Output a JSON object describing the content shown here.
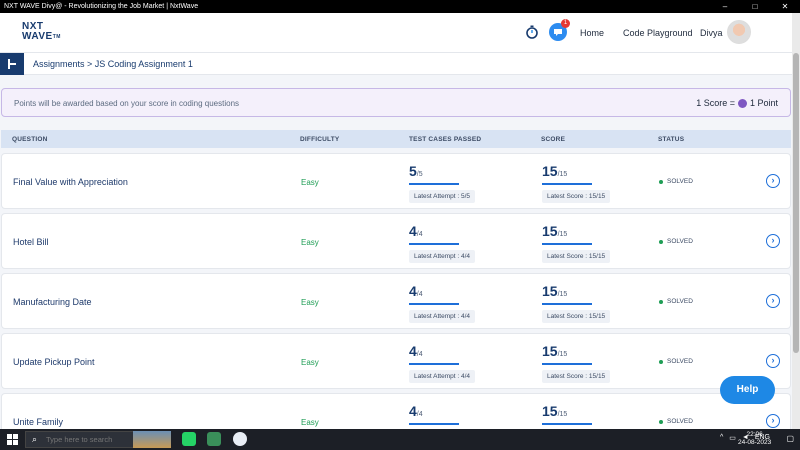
{
  "window": {
    "title": "NXT WAVE Divy@ - Revolutionizing the Job Market | NxtWave",
    "minimize": "–",
    "maximize": "□",
    "close": "✕"
  },
  "header": {
    "logo_top": "NXT",
    "logo_bottom": "WAVE",
    "logo_tm": "TM",
    "notification_count": "1",
    "nav_home": "Home",
    "nav_playground": "Code Playground",
    "user_name": "Divya"
  },
  "breadcrumb": "Assignments > JS Coding Assignment 1",
  "banner": {
    "text": "Points will be awarded based on your score in coding questions",
    "score_label": "1 Score =",
    "point_label": "1 Point"
  },
  "table": {
    "headers": [
      "QUESTION",
      "DIFFICULTY",
      "TEST CASES PASSED",
      "SCORE",
      "STATUS"
    ],
    "rows": [
      {
        "question": "Final Value with Appreciation",
        "difficulty": "Easy",
        "tests_passed": "5",
        "tests_total": "/5",
        "tests_latest": "Latest Attempt : 5/5",
        "score": "15",
        "score_total": "/15",
        "score_latest": "Latest Score : 15/15",
        "status": "SOLVED"
      },
      {
        "question": "Hotel Bill",
        "difficulty": "Easy",
        "tests_passed": "4",
        "tests_total": "/4",
        "tests_latest": "Latest Attempt : 4/4",
        "score": "15",
        "score_total": "/15",
        "score_latest": "Latest Score : 15/15",
        "status": "SOLVED"
      },
      {
        "question": "Manufacturing Date",
        "difficulty": "Easy",
        "tests_passed": "4",
        "tests_total": "/4",
        "tests_latest": "Latest Attempt : 4/4",
        "score": "15",
        "score_total": "/15",
        "score_latest": "Latest Score : 15/15",
        "status": "SOLVED"
      },
      {
        "question": "Update Pickup Point",
        "difficulty": "Easy",
        "tests_passed": "4",
        "tests_total": "/4",
        "tests_latest": "Latest Attempt : 4/4",
        "score": "15",
        "score_total": "/15",
        "score_latest": "Latest Score : 15/15",
        "status": "SOLVED"
      },
      {
        "question": "Unite Family",
        "difficulty": "Easy",
        "tests_passed": "4",
        "tests_total": "/4",
        "tests_latest": "",
        "score": "15",
        "score_total": "/15",
        "score_latest": "",
        "status": "SOLVED"
      }
    ]
  },
  "help_label": "Help",
  "taskbar": {
    "search_placeholder": "Type here to search",
    "tray_lang": "ENG",
    "time": "22:06",
    "date": "24-08-2023"
  },
  "colors": {
    "brand": "#183b6e",
    "accent": "#1e88e5",
    "success": "#1f9d55"
  }
}
